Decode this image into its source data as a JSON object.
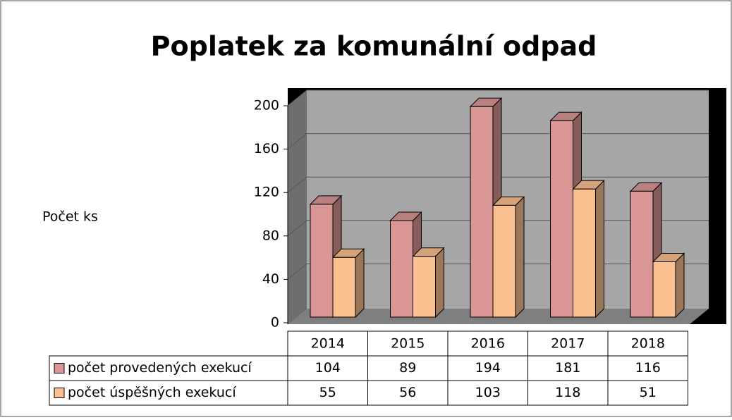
{
  "chart_data": {
    "type": "bar",
    "title": "Poplatek za komunální odpad",
    "y_label": "Počet ks",
    "categories": [
      "2014",
      "2015",
      "2016",
      "2017",
      "2018"
    ],
    "series": [
      {
        "name": "počet provedených exekucí",
        "color": "#d99694",
        "values": [
          104,
          89,
          194,
          181,
          116
        ]
      },
      {
        "name": "počet úspěšných exekucí",
        "color": "#fac090",
        "values": [
          55,
          56,
          103,
          118,
          51
        ]
      }
    ],
    "ylim": [
      0,
      200
    ],
    "yticks": [
      0,
      40,
      80,
      120,
      160,
      200
    ],
    "grid": true
  }
}
